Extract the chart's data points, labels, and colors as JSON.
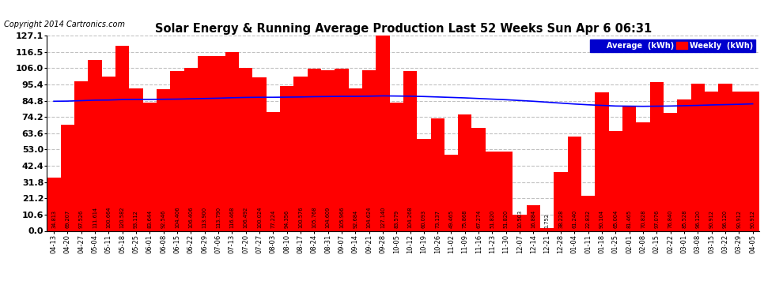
{
  "title": "Solar Energy & Running Average Production Last 52 Weeks Sun Apr 6 06:31",
  "copyright": "Copyright 2014 Cartronics.com",
  "bar_color": "#ff0000",
  "avg_line_color": "#0000ff",
  "background_color": "#ffffff",
  "plot_bg_color": "#ffffff",
  "grid_color": "#bbbbbb",
  "yticks": [
    0.0,
    10.6,
    21.2,
    31.8,
    42.4,
    53.0,
    63.6,
    74.2,
    84.8,
    95.4,
    106.0,
    116.5,
    127.1
  ],
  "categories": [
    "04-13",
    "04-20",
    "04-27",
    "05-04",
    "05-11",
    "05-18",
    "05-25",
    "06-01",
    "06-08",
    "06-15",
    "06-22",
    "06-29",
    "07-06",
    "07-13",
    "07-20",
    "07-27",
    "08-03",
    "08-10",
    "08-17",
    "08-24",
    "08-31",
    "09-07",
    "09-14",
    "09-21",
    "09-28",
    "10-05",
    "10-12",
    "10-19",
    "10-26",
    "11-02",
    "11-09",
    "11-16",
    "11-23",
    "11-30",
    "12-07",
    "12-14",
    "12-21",
    "12-28",
    "01-04",
    "01-11",
    "01-18",
    "01-25",
    "02-01",
    "02-08",
    "02-15",
    "02-22",
    "03-01",
    "03-08",
    "03-15",
    "03-22",
    "03-29",
    "04-05"
  ],
  "weekly_values": [
    34.813,
    69.207,
    97.526,
    111.614,
    100.664,
    120.582,
    93.112,
    83.644,
    92.546,
    104.406,
    106.406,
    113.9,
    113.79,
    116.468,
    106.492,
    100.024,
    77.224,
    94.356,
    100.576,
    105.768,
    104.609,
    105.966,
    92.684,
    104.624,
    127.14,
    83.579,
    104.268,
    60.093,
    73.137,
    49.465,
    75.868,
    67.274,
    51.82,
    51.82,
    10.503,
    16.884,
    1.752,
    38.228,
    61.24,
    22.832,
    90.104,
    65.004,
    81.465,
    70.828,
    97.076,
    76.84,
    85.528,
    96.12,
    90.912,
    96.12,
    90.912,
    90.912
  ],
  "avg_values": [
    84.5,
    84.6,
    84.9,
    85.2,
    85.3,
    85.6,
    85.7,
    85.7,
    85.8,
    85.9,
    86.1,
    86.3,
    86.5,
    86.8,
    87.0,
    87.1,
    87.1,
    87.2,
    87.3,
    87.5,
    87.6,
    87.7,
    87.7,
    87.8,
    88.0,
    87.9,
    87.8,
    87.6,
    87.3,
    87.0,
    86.7,
    86.3,
    85.9,
    85.5,
    85.0,
    84.5,
    83.9,
    83.3,
    82.7,
    82.2,
    81.8,
    81.4,
    81.3,
    81.2,
    81.3,
    81.4,
    81.6,
    81.8,
    82.1,
    82.3,
    82.5,
    82.8
  ],
  "legend_avg_color": "#0000cd",
  "legend_avg_label": "Average  (kWh)",
  "legend_weekly_color": "#ff0000",
  "legend_weekly_label": "Weekly  (kWh)"
}
